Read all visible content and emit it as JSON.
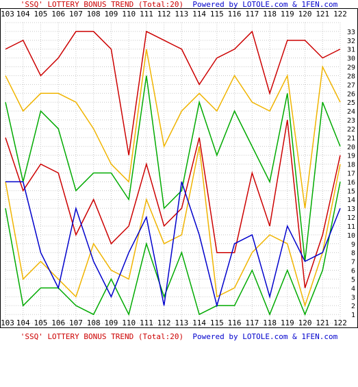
{
  "captions": {
    "title": "'SSQ' LOTTERY BONUS TREND (Total:20)",
    "powered_by": "Powered by LOTOLE.com & 1FEN.com"
  },
  "chart_data": {
    "type": "line",
    "categories": [
      "103",
      "104",
      "105",
      "106",
      "107",
      "108",
      "109",
      "110",
      "111",
      "112",
      "113",
      "114",
      "115",
      "116",
      "117",
      "118",
      "119",
      "120",
      "121",
      "122"
    ],
    "ylim": [
      0,
      34
    ],
    "yticks": [
      "1",
      "2",
      "3",
      "4",
      "5",
      "6",
      "7",
      "8",
      "9",
      "10",
      "11",
      "12",
      "13",
      "14",
      "15",
      "16",
      "17",
      "18",
      "19",
      "20",
      "21",
      "22",
      "23",
      "24",
      "25",
      "26",
      "27",
      "28",
      "29",
      "30",
      "31",
      "32",
      "33"
    ],
    "grid": true,
    "series": [
      {
        "color": "#00aa00",
        "values": [
          13,
          2,
          4,
          4,
          2,
          1,
          5,
          1,
          9,
          3,
          8,
          1,
          2,
          2,
          6,
          1,
          6,
          1,
          6,
          16
        ]
      },
      {
        "color": "#f0b400",
        "values": [
          16,
          5,
          7,
          5,
          3,
          9,
          6,
          5,
          14,
          9,
          10,
          20,
          3,
          4,
          8,
          10,
          9,
          2,
          8,
          18
        ]
      },
      {
        "color": "#cc0000",
        "values": [
          21,
          15,
          18,
          17,
          10,
          14,
          9,
          11,
          18,
          11,
          13,
          21,
          8,
          8,
          17,
          11,
          23,
          4,
          10,
          19
        ]
      },
      {
        "color": "#00aa00",
        "values": [
          25,
          16,
          24,
          22,
          15,
          17,
          17,
          14,
          28,
          13,
          15,
          25,
          19,
          24,
          20,
          16,
          26,
          7,
          25,
          20
        ]
      },
      {
        "color": "#f0b400",
        "values": [
          28,
          24,
          26,
          26,
          25,
          22,
          18,
          16,
          31,
          20,
          24,
          26,
          24,
          28,
          25,
          24,
          28,
          13,
          29,
          25
        ]
      },
      {
        "color": "#cc0000",
        "values": [
          31,
          32,
          28,
          30,
          33,
          33,
          31,
          19,
          33,
          32,
          31,
          27,
          30,
          31,
          33,
          26,
          32,
          32,
          30,
          31
        ]
      },
      {
        "color": "#0000cc",
        "values": [
          16,
          16,
          8,
          4,
          13,
          7,
          3,
          8,
          12,
          2,
          16,
          10,
          2,
          9,
          10,
          3,
          11,
          7,
          8,
          13
        ]
      }
    ]
  }
}
